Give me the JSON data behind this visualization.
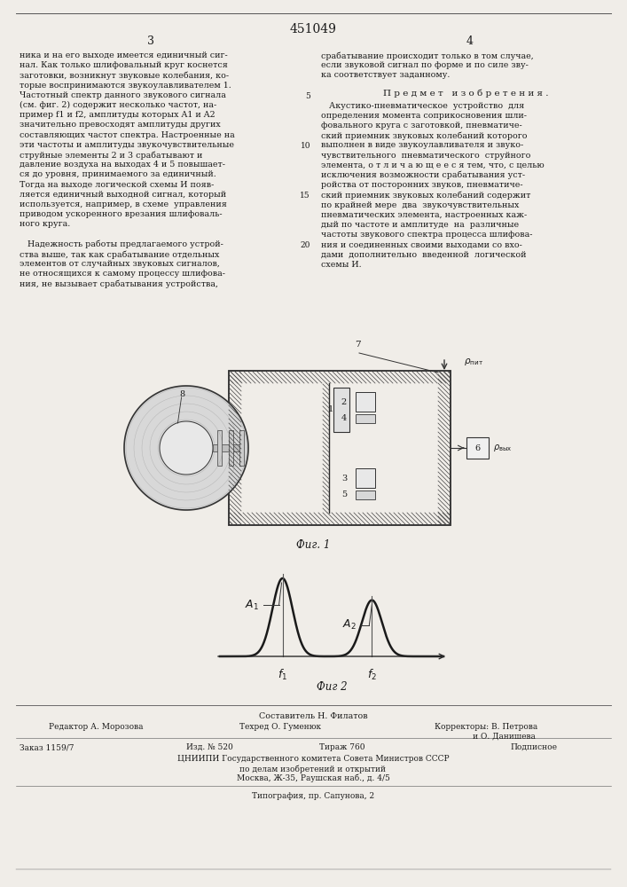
{
  "patent_number": "451049",
  "page_left": "3",
  "page_right": "4",
  "background_color": "#f0ede8",
  "text_color": "#1a1a1a",
  "left_column_text": [
    "ника и на его выходе имеется единичный сиг-",
    "нал. Как только шлифовальный круг коснется",
    "заготовки, возникнут звуковые колебания, ко-",
    "торые воспринимаются звукоулавливателем 1.",
    "Частотный спектр данного звукового сигнала",
    "(см. фиг. 2) содержит несколько частот, на-",
    "пример f1 и f2, амплитуды которых A1 и A2",
    "значительно превосходят амплитуды других",
    "составляющих частот спектра. Настроенные на",
    "эти частоты и амплитуды звукочувствительные",
    "струйные элементы 2 и 3 срабатывают и",
    "давление воздуха на выходах 4 и 5 повышает-",
    "ся до уровня, принимаемого за единичный.",
    "Тогда на выходе логической схемы И появ-",
    "ляется единичный выходной сигнал, который",
    "используется, например, в схеме  управления",
    "приводом ускоренного врезания шлифоваль-",
    "ного круга.",
    "",
    "   Надежность работы предлагаемого устрой-",
    "ства выше, так как срабатывание отдельных",
    "элементов от случайных звуковых сигналов,",
    "не относящихся к самому процессу шлифова-",
    "ния, не вызывает срабатывания устройства,"
  ],
  "right_column_text_top": [
    "срабатывание происходит только в том случае,",
    "если звуковой сигнал по форме и по силе зву-",
    "ка соответствует заданному."
  ],
  "subject_title": "П р е д м е т   и з о б р е т е н и я .",
  "subject_text": [
    "   Акустико-пневматическое  устройство  для",
    "определения момента соприкосновения шли-",
    "фовального круга с заготовкой, пневматиче-",
    "ский приемник звуковых колебаний которого",
    "выполнен в виде звукоулавливателя и звуко-",
    "чувствительного  пневматического  струйного",
    "элемента, о т л и ч а ю щ е е с я тем, что, с целью",
    "исключения возможности срабатывания уст-",
    "ройства от посторонних звуков, пневматиче-",
    "ский приемник звуковых колебаний содержит",
    "по крайней мере  два  звукочувствительных",
    "пневматических элемента, настроенных каж-",
    "дый по частоте и амплитуде  на  различные",
    "частоты звукового спектра процесса шлифова-",
    "ния и соединенных своими выходами со вхо-",
    "дами  дополнительно  введенной  логической",
    "схемы И."
  ],
  "fig1_caption": "Фиг. 1",
  "fig2_caption": "Фиг 2",
  "footer_composer": "Составитель Н. Филатов",
  "footer_editor": "Редактор А. Морозова",
  "footer_tech": "Техред О. Гуменюк",
  "footer_correctors": "Корректоры: В. Петрова",
  "footer_correctors2": "               и О. Данишева",
  "footer_order": "Заказ 1159/7",
  "footer_izd": "Изд. № 520",
  "footer_tirazh": "Тираж 760",
  "footer_podpis": "Подписное",
  "footer_tsniipi": "ЦНИИПИ Государственного комитета Совета Министров СССР",
  "footer_address": "по делам изобретений и открытий",
  "footer_city": "Москва, Ж-35, Раушская наб., д. 4/5",
  "footer_typography": "Типография, пр. Сапунова, 2"
}
